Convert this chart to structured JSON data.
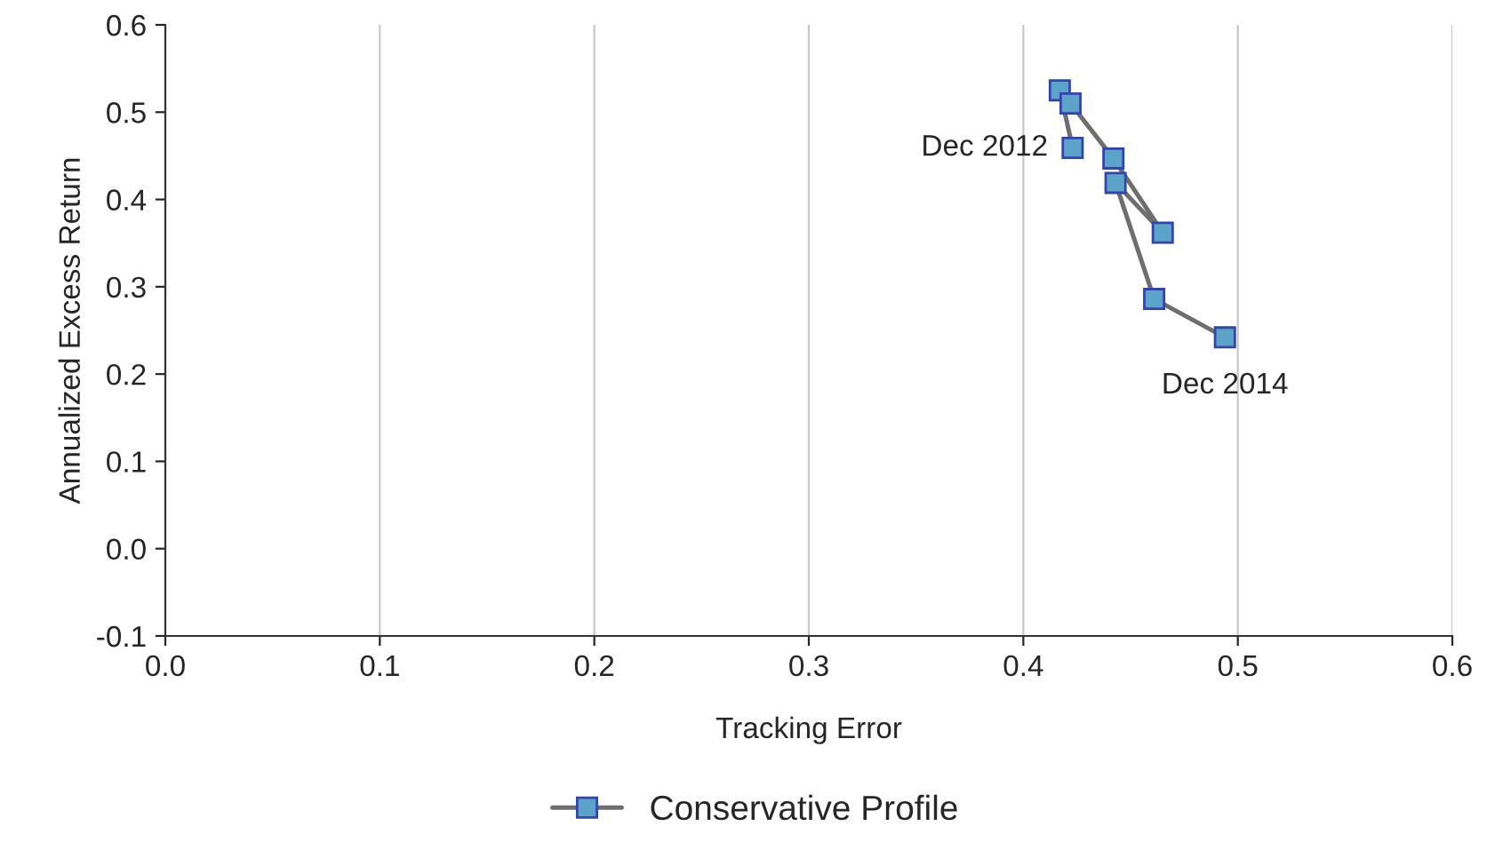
{
  "chart_data": {
    "type": "line",
    "xlabel": "Tracking Error",
    "ylabel": "Annualized Excess Return",
    "series": [
      {
        "name": "Conservative Profile",
        "color": "#5ba3c9",
        "x": [
          0.423,
          0.417,
          0.422,
          0.442,
          0.465,
          0.443,
          0.461,
          0.494
        ],
        "values": [
          0.459,
          0.525,
          0.51,
          0.447,
          0.362,
          0.419,
          0.286,
          0.242
        ]
      }
    ],
    "annotations": [
      {
        "text": "Dec 2012",
        "x": 0.423,
        "y": 0.459
      },
      {
        "text": "Dec 2014",
        "x": 0.494,
        "y": 0.242
      }
    ],
    "xlim": [
      0.0,
      0.6
    ],
    "xticks": [
      {
        "value": 0.0,
        "label": "0.0"
      },
      0.1,
      0.2,
      0.3,
      0.4,
      0.5,
      0.6
    ],
    "ylim": [
      -0.1,
      0.6
    ],
    "yticks": [
      -0.1,
      {
        "value": 0.0,
        "label": "0.0"
      },
      0.1,
      0.2,
      0.3,
      0.4,
      0.5,
      0.6
    ],
    "grid": "x",
    "legend": "bottom",
    "marker": "square",
    "line_style": "solid"
  }
}
